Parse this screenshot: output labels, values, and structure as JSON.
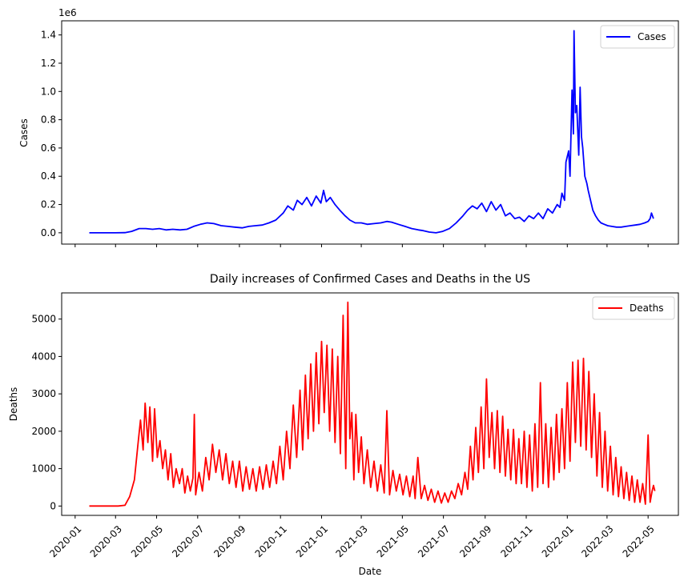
{
  "chart_data": [
    {
      "type": "line",
      "title": "",
      "xlabel": "",
      "ylabel": "Cases",
      "offset_text": "1e6",
      "y_scale": 1000000,
      "ylim": [
        -0.08,
        1.5
      ],
      "xlim": [
        "2019-12-12",
        "2022-06-15"
      ],
      "grid": false,
      "legend": "upper-right",
      "yticks": [
        0.0,
        0.2,
        0.4,
        0.6,
        0.8,
        1.0,
        1.2,
        1.4
      ],
      "ytick_labels": [
        "0.0",
        "0.2",
        "0.4",
        "0.6",
        "0.8",
        "1.0",
        "1.2",
        "1.4"
      ],
      "series": [
        {
          "name": "Cases",
          "color": "#0000ff",
          "x": [
            "2020-01-22",
            "2020-03-01",
            "2020-03-15",
            "2020-03-25",
            "2020-04-05",
            "2020-04-15",
            "2020-04-25",
            "2020-05-05",
            "2020-05-15",
            "2020-05-25",
            "2020-06-05",
            "2020-06-15",
            "2020-06-25",
            "2020-07-05",
            "2020-07-15",
            "2020-07-25",
            "2020-08-05",
            "2020-08-15",
            "2020-08-25",
            "2020-09-05",
            "2020-09-15",
            "2020-09-25",
            "2020-10-05",
            "2020-10-15",
            "2020-10-25",
            "2020-11-05",
            "2020-11-12",
            "2020-11-20",
            "2020-11-26",
            "2020-12-03",
            "2020-12-10",
            "2020-12-17",
            "2020-12-24",
            "2020-12-31",
            "2021-01-04",
            "2021-01-08",
            "2021-01-14",
            "2021-01-21",
            "2021-01-28",
            "2021-02-05",
            "2021-02-12",
            "2021-02-20",
            "2021-03-01",
            "2021-03-10",
            "2021-03-20",
            "2021-03-30",
            "2021-04-08",
            "2021-04-15",
            "2021-04-25",
            "2021-05-05",
            "2021-05-15",
            "2021-05-25",
            "2021-06-01",
            "2021-06-10",
            "2021-06-20",
            "2021-06-30",
            "2021-07-10",
            "2021-07-20",
            "2021-07-30",
            "2021-08-06",
            "2021-08-13",
            "2021-08-20",
            "2021-08-27",
            "2021-09-03",
            "2021-09-10",
            "2021-09-17",
            "2021-09-24",
            "2021-10-01",
            "2021-10-08",
            "2021-10-15",
            "2021-10-22",
            "2021-10-29",
            "2021-11-05",
            "2021-11-12",
            "2021-11-19",
            "2021-11-26",
            "2021-12-03",
            "2021-12-10",
            "2021-12-17",
            "2021-12-21",
            "2021-12-24",
            "2021-12-28",
            "2021-12-30",
            "2022-01-03",
            "2022-01-05",
            "2022-01-08",
            "2022-01-10",
            "2022-01-11",
            "2022-01-13",
            "2022-01-15",
            "2022-01-18",
            "2022-01-20",
            "2022-01-22",
            "2022-01-24",
            "2022-01-27",
            "2022-01-30",
            "2022-02-01",
            "2022-02-05",
            "2022-02-08",
            "2022-02-12",
            "2022-02-16",
            "2022-02-20",
            "2022-02-25",
            "2022-03-02",
            "2022-03-08",
            "2022-03-15",
            "2022-03-22",
            "2022-03-29",
            "2022-04-05",
            "2022-04-12",
            "2022-04-19",
            "2022-04-26",
            "2022-05-01",
            "2022-05-04",
            "2022-05-06",
            "2022-05-09"
          ],
          "values": [
            0.0,
            0.0,
            0.001,
            0.01,
            0.03,
            0.03,
            0.025,
            0.03,
            0.02,
            0.025,
            0.02,
            0.025,
            0.045,
            0.06,
            0.07,
            0.065,
            0.05,
            0.045,
            0.04,
            0.035,
            0.045,
            0.05,
            0.055,
            0.07,
            0.09,
            0.14,
            0.19,
            0.16,
            0.23,
            0.2,
            0.25,
            0.19,
            0.26,
            0.21,
            0.3,
            0.22,
            0.25,
            0.2,
            0.16,
            0.12,
            0.09,
            0.07,
            0.07,
            0.06,
            0.065,
            0.07,
            0.08,
            0.075,
            0.06,
            0.045,
            0.03,
            0.02,
            0.015,
            0.005,
            0.0,
            0.01,
            0.03,
            0.07,
            0.12,
            0.16,
            0.19,
            0.17,
            0.21,
            0.15,
            0.22,
            0.16,
            0.2,
            0.12,
            0.14,
            0.1,
            0.11,
            0.08,
            0.12,
            0.1,
            0.14,
            0.1,
            0.17,
            0.14,
            0.2,
            0.18,
            0.28,
            0.23,
            0.5,
            0.58,
            0.4,
            1.01,
            0.7,
            1.43,
            0.85,
            0.9,
            0.55,
            1.03,
            0.68,
            0.6,
            0.4,
            0.35,
            0.3,
            0.22,
            0.16,
            0.12,
            0.09,
            0.07,
            0.06,
            0.05,
            0.045,
            0.04,
            0.04,
            0.045,
            0.05,
            0.055,
            0.06,
            0.07,
            0.08,
            0.1,
            0.14,
            0.1
          ]
        }
      ]
    },
    {
      "type": "line",
      "title": "Daily increases of Confirmed Cases and Deaths in the US",
      "xlabel": "Date",
      "ylabel": "Deaths",
      "ylim": [
        -250,
        5700
      ],
      "xlim": [
        "2019-12-12",
        "2022-06-15"
      ],
      "grid": false,
      "legend": "upper-right",
      "yticks": [
        0,
        1000,
        2000,
        3000,
        4000,
        5000
      ],
      "ytick_labels": [
        "0",
        "1000",
        "2000",
        "3000",
        "4000",
        "5000"
      ],
      "xticks": [
        "2020-01-01",
        "2020-03-01",
        "2020-05-01",
        "2020-07-01",
        "2020-09-01",
        "2020-11-01",
        "2021-01-01",
        "2021-03-01",
        "2021-05-01",
        "2021-07-01",
        "2021-09-01",
        "2021-11-01",
        "2022-01-01",
        "2022-03-01",
        "2022-05-01"
      ],
      "xtick_labels": [
        "2020-01",
        "2020-03",
        "2020-05",
        "2020-07",
        "2020-09",
        "2020-11",
        "2021-01",
        "2021-03",
        "2021-05",
        "2021-07",
        "2021-09",
        "2021-11",
        "2022-01",
        "2022-03",
        "2022-05"
      ],
      "series": [
        {
          "name": "Deaths",
          "color": "#ff0000",
          "x": [
            "2020-01-22",
            "2020-03-05",
            "2020-03-15",
            "2020-03-22",
            "2020-03-29",
            "2020-04-03",
            "2020-04-07",
            "2020-04-11",
            "2020-04-14",
            "2020-04-18",
            "2020-04-21",
            "2020-04-25",
            "2020-04-28",
            "2020-05-02",
            "2020-05-06",
            "2020-05-10",
            "2020-05-14",
            "2020-05-18",
            "2020-05-22",
            "2020-05-26",
            "2020-05-30",
            "2020-06-04",
            "2020-06-08",
            "2020-06-12",
            "2020-06-16",
            "2020-06-20",
            "2020-06-24",
            "2020-06-26",
            "2020-06-28",
            "2020-07-03",
            "2020-07-08",
            "2020-07-13",
            "2020-07-18",
            "2020-07-23",
            "2020-07-28",
            "2020-08-02",
            "2020-08-07",
            "2020-08-12",
            "2020-08-17",
            "2020-08-22",
            "2020-08-27",
            "2020-09-01",
            "2020-09-06",
            "2020-09-11",
            "2020-09-16",
            "2020-09-21",
            "2020-09-26",
            "2020-10-01",
            "2020-10-06",
            "2020-10-11",
            "2020-10-16",
            "2020-10-21",
            "2020-10-26",
            "2020-10-31",
            "2020-11-05",
            "2020-11-10",
            "2020-11-15",
            "2020-11-20",
            "2020-11-25",
            "2020-11-30",
            "2020-12-04",
            "2020-12-08",
            "2020-12-12",
            "2020-12-16",
            "2020-12-20",
            "2020-12-24",
            "2020-12-28",
            "2021-01-01",
            "2021-01-05",
            "2021-01-09",
            "2021-01-13",
            "2021-01-17",
            "2021-01-21",
            "2021-01-25",
            "2021-01-29",
            "2021-02-02",
            "2021-02-06",
            "2021-02-09",
            "2021-02-12",
            "2021-02-15",
            "2021-02-18",
            "2021-02-21",
            "2021-02-25",
            "2021-03-01",
            "2021-03-05",
            "2021-03-10",
            "2021-03-15",
            "2021-03-20",
            "2021-03-25",
            "2021-03-30",
            "2021-04-04",
            "2021-04-08",
            "2021-04-12",
            "2021-04-17",
            "2021-04-22",
            "2021-04-27",
            "2021-05-02",
            "2021-05-07",
            "2021-05-12",
            "2021-05-17",
            "2021-05-20",
            "2021-05-24",
            "2021-05-29",
            "2021-06-03",
            "2021-06-08",
            "2021-06-13",
            "2021-06-18",
            "2021-06-23",
            "2021-06-28",
            "2021-07-03",
            "2021-07-08",
            "2021-07-13",
            "2021-07-18",
            "2021-07-23",
            "2021-07-28",
            "2021-08-02",
            "2021-08-06",
            "2021-08-10",
            "2021-08-14",
            "2021-08-18",
            "2021-08-22",
            "2021-08-26",
            "2021-08-30",
            "2021-09-03",
            "2021-09-07",
            "2021-09-11",
            "2021-09-15",
            "2021-09-19",
            "2021-09-23",
            "2021-09-27",
            "2021-10-01",
            "2021-10-05",
            "2021-10-09",
            "2021-10-13",
            "2021-10-17",
            "2021-10-21",
            "2021-10-25",
            "2021-10-29",
            "2021-11-02",
            "2021-11-06",
            "2021-11-10",
            "2021-11-14",
            "2021-11-18",
            "2021-11-22",
            "2021-11-26",
            "2021-11-30",
            "2021-12-04",
            "2021-12-08",
            "2021-12-12",
            "2021-12-16",
            "2021-12-20",
            "2021-12-24",
            "2021-12-28",
            "2022-01-01",
            "2022-01-05",
            "2022-01-09",
            "2022-01-13",
            "2022-01-17",
            "2022-01-21",
            "2022-01-25",
            "2022-01-29",
            "2022-02-02",
            "2022-02-06",
            "2022-02-10",
            "2022-02-14",
            "2022-02-18",
            "2022-02-22",
            "2022-02-26",
            "2022-03-02",
            "2022-03-06",
            "2022-03-10",
            "2022-03-14",
            "2022-03-18",
            "2022-03-22",
            "2022-03-26",
            "2022-03-30",
            "2022-04-03",
            "2022-04-07",
            "2022-04-11",
            "2022-04-15",
            "2022-04-19",
            "2022-04-23",
            "2022-04-27",
            "2022-05-01",
            "2022-05-04",
            "2022-05-07",
            "2022-05-09",
            "2022-05-11"
          ],
          "values": [
            0,
            0,
            20,
            250,
            700,
            1600,
            2300,
            1500,
            2750,
            1700,
            2650,
            1200,
            2600,
            1300,
            1750,
            1000,
            1500,
            700,
            1400,
            500,
            1000,
            600,
            1000,
            350,
            800,
            400,
            750,
            2450,
            300,
            900,
            400,
            1300,
            700,
            1650,
            900,
            1500,
            700,
            1400,
            600,
            1200,
            500,
            1200,
            400,
            1050,
            450,
            1000,
            400,
            1050,
            450,
            1100,
            500,
            1200,
            600,
            1600,
            700,
            2000,
            1000,
            2700,
            1300,
            3100,
            1500,
            3500,
            1800,
            3800,
            2000,
            4100,
            2200,
            4400,
            2500,
            4300,
            2000,
            4200,
            1700,
            4000,
            1400,
            5100,
            1000,
            5450,
            1800,
            2500,
            700,
            2450,
            900,
            1850,
            600,
            1500,
            500,
            1200,
            400,
            1100,
            350,
            2550,
            300,
            950,
            400,
            850,
            300,
            800,
            250,
            800,
            200,
            1300,
            200,
            550,
            150,
            450,
            100,
            400,
            80,
            350,
            100,
            400,
            200,
            600,
            300,
            900,
            450,
            1600,
            700,
            2100,
            900,
            2650,
            1000,
            3400,
            1300,
            2500,
            1000,
            2550,
            900,
            2400,
            800,
            2050,
            700,
            2050,
            600,
            1800,
            600,
            2000,
            500,
            1900,
            400,
            2200,
            500,
            3300,
            600,
            2200,
            500,
            2100,
            700,
            2450,
            900,
            2600,
            1000,
            3300,
            1200,
            3850,
            1700,
            3900,
            1600,
            3950,
            1500,
            3600,
            1300,
            3000,
            800,
            2500,
            500,
            2000,
            400,
            1600,
            300,
            1300,
            250,
            1050,
            200,
            900,
            150,
            800,
            100,
            700,
            100,
            600,
            50,
            1900,
            100,
            400,
            550,
            400
          ]
        }
      ]
    }
  ]
}
